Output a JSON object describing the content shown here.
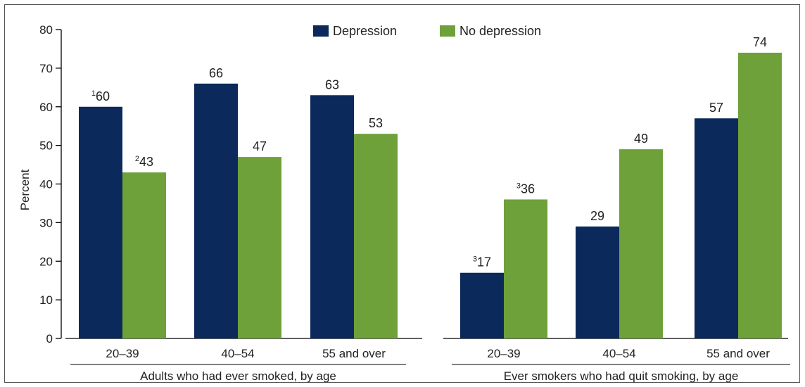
{
  "chart_data": {
    "type": "bar",
    "ylabel": "Percent",
    "ylim": [
      0,
      80
    ],
    "yticks": [
      0,
      10,
      20,
      30,
      40,
      50,
      60,
      70,
      80
    ],
    "legend_position": "top",
    "series": [
      {
        "name": "Depression",
        "color": "#0b2a5b"
      },
      {
        "name": "No depression",
        "color": "#6ea13a"
      }
    ],
    "groups": [
      {
        "label": "Adults who had ever smoked, by age",
        "categories": [
          {
            "label": "20–39",
            "values": [
              60,
              43
            ],
            "value_labels": [
              "60",
              "43"
            ],
            "footnotes": [
              "1",
              "2"
            ]
          },
          {
            "label": "40–54",
            "values": [
              66,
              47
            ],
            "value_labels": [
              "66",
              "47"
            ],
            "footnotes": [
              "",
              ""
            ]
          },
          {
            "label": "55 and over",
            "values": [
              63,
              53
            ],
            "value_labels": [
              "63",
              "53"
            ],
            "footnotes": [
              "",
              ""
            ]
          }
        ]
      },
      {
        "label": "Ever smokers who had quit smoking, by age",
        "categories": [
          {
            "label": "20–39",
            "values": [
              17,
              36
            ],
            "value_labels": [
              "17",
              "36"
            ],
            "footnotes": [
              "3",
              "3"
            ]
          },
          {
            "label": "40–54",
            "values": [
              29,
              49
            ],
            "value_labels": [
              "29",
              "49"
            ],
            "footnotes": [
              "",
              ""
            ]
          },
          {
            "label": "55 and over",
            "values": [
              57,
              74
            ],
            "value_labels": [
              "57",
              "74"
            ],
            "footnotes": [
              "",
              ""
            ]
          }
        ]
      }
    ]
  }
}
